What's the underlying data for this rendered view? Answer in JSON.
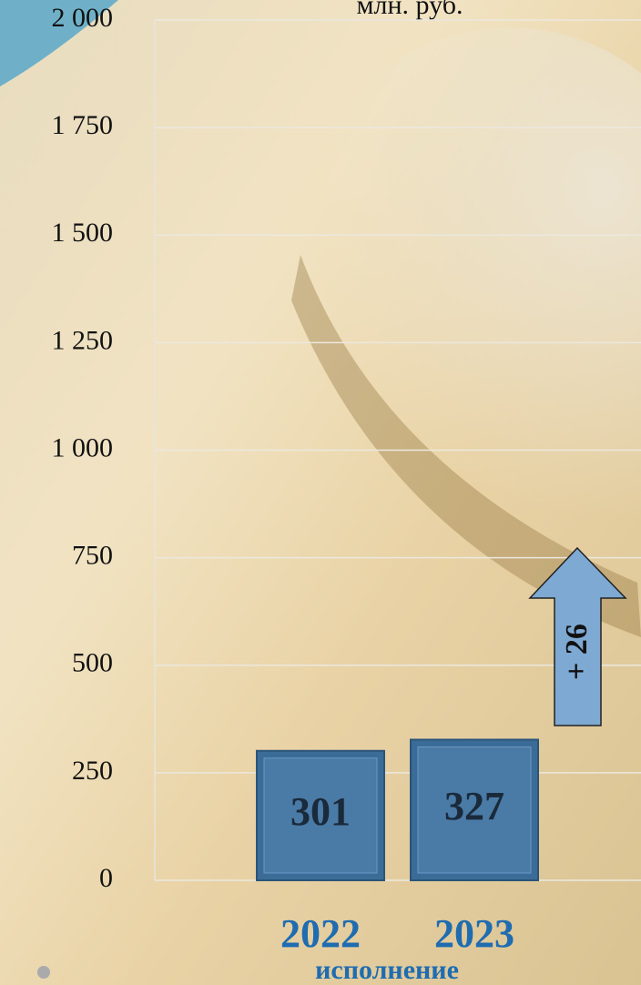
{
  "chart_data": {
    "type": "bar",
    "title": "млн. руб.",
    "categories": [
      "2022",
      "2023"
    ],
    "values": [
      301,
      327
    ],
    "color": "#3b6c98",
    "xlabel": "исполнение",
    "annotation": "+ 26",
    "ylim": [
      0,
      2000
    ],
    "yticks": [
      0,
      250,
      500,
      750,
      {
        "value": 1000,
        "label": "1 000"
      },
      {
        "value": 1250,
        "label": "1 250"
      },
      {
        "value": 1500,
        "label": "1 500"
      },
      {
        "value": 1750,
        "label": "1 750"
      },
      {
        "value": 2000,
        "label": "2 000"
      }
    ],
    "grid": true
  }
}
